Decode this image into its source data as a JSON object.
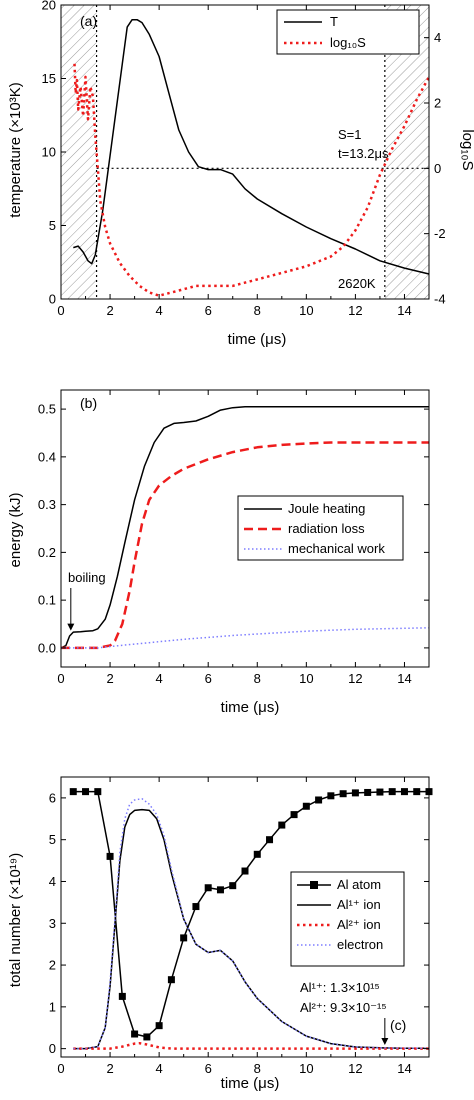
{
  "chart_data": [
    {
      "panel_label": "(a)",
      "type": "line",
      "xlabel": "time (μs)",
      "ylabel": "temperature (×10³K)",
      "ylabel_right": "log₁₀S",
      "xlim": [
        0,
        15
      ],
      "ylim": [
        0,
        20
      ],
      "ylim_right": [
        -4,
        5
      ],
      "xticks": [
        "0",
        "2",
        "4",
        "6",
        "8",
        "10",
        "12",
        "14"
      ],
      "yticks": [
        "0",
        "5",
        "10",
        "15",
        "20"
      ],
      "yticks_right": [
        "-4",
        "-2",
        "0",
        "2",
        "4"
      ],
      "legend": {
        "position": "top-right"
      },
      "series": [
        {
          "name": "T",
          "axis": "left",
          "color": "#000000",
          "style": "solid",
          "x": [
            0.5,
            0.7,
            0.9,
            1.1,
            1.25,
            1.4,
            1.55,
            1.7,
            1.9,
            2.1,
            2.3,
            2.5,
            2.7,
            2.9,
            3.1,
            3.3,
            3.6,
            4.0,
            4.4,
            4.8,
            5.2,
            5.6,
            6.0,
            6.5,
            7.0,
            7.5,
            8.0,
            9.0,
            10.0,
            11.0,
            12.0,
            13.0,
            14.0,
            15.0
          ],
          "y": [
            3.5,
            3.6,
            3.2,
            2.6,
            2.4,
            3.0,
            4.5,
            6.0,
            8.5,
            11.0,
            13.5,
            16.0,
            18.5,
            19.0,
            19.0,
            18.8,
            18.0,
            16.5,
            14.0,
            11.5,
            10.0,
            9.0,
            8.8,
            8.8,
            8.5,
            7.5,
            6.8,
            5.8,
            4.9,
            4.1,
            3.4,
            2.6,
            2.1,
            1.7
          ]
        },
        {
          "name": "log₁₀S",
          "axis": "right",
          "color": "#ee1c1c",
          "style": "dotted",
          "x": [
            0.55,
            0.6,
            0.65,
            0.7,
            0.8,
            0.9,
            1.0,
            1.1,
            1.2,
            1.3,
            1.4,
            1.5,
            1.6,
            1.8,
            2.0,
            2.4,
            2.8,
            3.2,
            3.6,
            4.0,
            4.5,
            5.0,
            5.5,
            6.0,
            6.5,
            7.0,
            8.0,
            9.0,
            10.0,
            11.0,
            11.5,
            12.0,
            12.5,
            13.0,
            13.5,
            14.0,
            14.5,
            15.0
          ],
          "y": [
            3.2,
            2.3,
            2.7,
            1.8,
            2.5,
            1.6,
            2.8,
            1.5,
            2.5,
            2.2,
            1.0,
            0.0,
            -1.0,
            -1.8,
            -2.3,
            -2.9,
            -3.3,
            -3.6,
            -3.8,
            -3.9,
            -3.8,
            -3.7,
            -3.6,
            -3.6,
            -3.6,
            -3.6,
            -3.4,
            -3.2,
            -3.0,
            -2.7,
            -2.4,
            -1.9,
            -1.2,
            -0.2,
            0.6,
            1.3,
            2.1,
            2.8
          ]
        }
      ],
      "reference_lines": {
        "x": [
          1.45,
          13.2
        ],
        "y_right": 0
      },
      "shaded_regions": [
        [
          0,
          1.45
        ],
        [
          13.2,
          15
        ]
      ],
      "annotations": {
        "s_line1": "S=1",
        "s_line2": "t=13.2μs",
        "temp": "2620K"
      }
    },
    {
      "panel_label": "(b)",
      "type": "line",
      "xlabel": "time (μs)",
      "ylabel": "energy (kJ)",
      "xlim": [
        0,
        15
      ],
      "ylim": [
        -0.04,
        0.54
      ],
      "xticks": [
        "0",
        "2",
        "4",
        "6",
        "8",
        "10",
        "12",
        "14"
      ],
      "yticks": [
        "0.0",
        "0.1",
        "0.2",
        "0.3",
        "0.4",
        "0.5"
      ],
      "legend": {
        "position": "center-right"
      },
      "series": [
        {
          "name": "Joule heating",
          "color": "#000000",
          "style": "solid",
          "x": [
            0,
            0.2,
            0.35,
            0.5,
            0.8,
            1.0,
            1.3,
            1.5,
            1.8,
            2.0,
            2.3,
            2.6,
            3.0,
            3.4,
            3.8,
            4.2,
            4.6,
            5.0,
            5.5,
            6.0,
            6.5,
            7.0,
            7.5,
            8.0,
            9.0,
            10.0,
            11.0,
            12.0,
            13.0,
            14.0,
            15.0
          ],
          "y": [
            0.0,
            0.005,
            0.025,
            0.033,
            0.034,
            0.035,
            0.036,
            0.04,
            0.06,
            0.09,
            0.15,
            0.22,
            0.31,
            0.38,
            0.43,
            0.46,
            0.47,
            0.472,
            0.475,
            0.485,
            0.498,
            0.503,
            0.505,
            0.505,
            0.505,
            0.505,
            0.505,
            0.505,
            0.505,
            0.505,
            0.505
          ]
        },
        {
          "name": "radiation loss",
          "color": "#ee1c1c",
          "style": "dashed",
          "x": [
            0,
            1.5,
            2.0,
            2.2,
            2.5,
            2.8,
            3.0,
            3.3,
            3.6,
            4.0,
            4.5,
            5.0,
            6.0,
            7.0,
            8.0,
            9.0,
            10.0,
            11.0,
            12.0,
            13.0,
            14.0,
            15.0
          ],
          "y": [
            0.0,
            0.0,
            0.005,
            0.015,
            0.05,
            0.12,
            0.18,
            0.26,
            0.31,
            0.34,
            0.36,
            0.375,
            0.395,
            0.41,
            0.42,
            0.425,
            0.428,
            0.43,
            0.43,
            0.43,
            0.43,
            0.43
          ]
        },
        {
          "name": "mechanical work",
          "color": "#7d7dff",
          "style": "dotted",
          "x": [
            0,
            1.5,
            2.0,
            3.0,
            4.0,
            5.0,
            6.0,
            7.0,
            8.0,
            9.0,
            10.0,
            11.0,
            12.0,
            13.0,
            14.0,
            15.0
          ],
          "y": [
            0.0,
            0.0,
            0.003,
            0.008,
            0.013,
            0.018,
            0.022,
            0.026,
            0.029,
            0.032,
            0.035,
            0.037,
            0.039,
            0.04,
            0.041,
            0.042
          ]
        }
      ],
      "annotations": {
        "boiling": "boiling",
        "boiling_at": {
          "x": 0.4,
          "y": 0.034
        }
      }
    },
    {
      "panel_label": "(c)",
      "type": "line",
      "xlabel": "time (μs)",
      "ylabel": "total number (×10¹⁹)",
      "xlim": [
        0,
        15
      ],
      "ylim": [
        -0.2,
        6.5
      ],
      "xticks": [
        "0",
        "2",
        "4",
        "6",
        "8",
        "10",
        "12",
        "14"
      ],
      "yticks": [
        "0",
        "1",
        "2",
        "3",
        "4",
        "5",
        "6"
      ],
      "legend": {
        "position": "center-right"
      },
      "series": [
        {
          "name": "Al atom",
          "color": "#000000",
          "style": "solid-square",
          "x": [
            0.5,
            1.0,
            1.5,
            2.0,
            2.5,
            3.0,
            3.5,
            4.0,
            4.5,
            5.0,
            5.5,
            6.0,
            6.5,
            7.0,
            7.5,
            8.0,
            8.5,
            9.0,
            9.5,
            10.0,
            10.5,
            11.0,
            11.5,
            12.0,
            12.5,
            13.0,
            13.5,
            14.0,
            14.5,
            15.0
          ],
          "y": [
            6.15,
            6.15,
            6.15,
            4.6,
            1.25,
            0.35,
            0.28,
            0.55,
            1.65,
            2.65,
            3.4,
            3.85,
            3.8,
            3.9,
            4.25,
            4.65,
            5.0,
            5.35,
            5.6,
            5.8,
            5.95,
            6.05,
            6.1,
            6.12,
            6.13,
            6.14,
            6.15,
            6.15,
            6.15,
            6.15
          ]
        },
        {
          "name": "Al¹⁺ ion",
          "color": "#000000",
          "style": "solid",
          "x": [
            0.5,
            1.0,
            1.5,
            1.8,
            2.0,
            2.2,
            2.4,
            2.6,
            2.8,
            3.0,
            3.3,
            3.6,
            3.9,
            4.2,
            4.5,
            5.0,
            5.5,
            6.0,
            6.5,
            7.0,
            7.5,
            8.0,
            9.0,
            10.0,
            11.0,
            12.0,
            13.0,
            14.0,
            15.0
          ],
          "y": [
            0.0,
            0.0,
            0.05,
            0.5,
            1.5,
            3.0,
            4.5,
            5.3,
            5.6,
            5.7,
            5.72,
            5.7,
            5.5,
            5.0,
            4.2,
            3.1,
            2.5,
            2.3,
            2.35,
            2.1,
            1.6,
            1.2,
            0.65,
            0.3,
            0.12,
            0.04,
            0.02,
            0.01,
            0.01
          ]
        },
        {
          "name": "Al²⁺ ion",
          "color": "#ee1c1c",
          "style": "dotted",
          "x": [
            0.5,
            2.0,
            2.5,
            3.0,
            3.2,
            3.5,
            4.0,
            4.5,
            5.0,
            15.0
          ],
          "y": [
            0.0,
            0.0,
            0.05,
            0.12,
            0.13,
            0.1,
            0.03,
            0.0,
            0.0,
            0.0
          ]
        },
        {
          "name": "electron",
          "color": "#7d7dff",
          "style": "dotted",
          "x": [
            0.5,
            1.0,
            1.5,
            1.8,
            2.0,
            2.2,
            2.4,
            2.6,
            2.8,
            3.0,
            3.3,
            3.6,
            3.9,
            4.2,
            4.5,
            5.0,
            5.5,
            6.0,
            6.5,
            7.0,
            7.5,
            8.0,
            9.0,
            10.0,
            11.0,
            12.0,
            13.0,
            14.0,
            15.0
          ],
          "y": [
            0.0,
            0.0,
            0.05,
            0.5,
            1.6,
            3.1,
            4.7,
            5.5,
            5.85,
            5.95,
            5.98,
            5.85,
            5.6,
            5.1,
            4.3,
            3.1,
            2.5,
            2.3,
            2.35,
            2.1,
            1.6,
            1.2,
            0.65,
            0.3,
            0.12,
            0.04,
            0.02,
            0.01,
            0.01
          ]
        }
      ],
      "annotations": {
        "al1": "Al¹⁺: 1.3×10¹⁵",
        "al2": "Al²⁺: 9.3×10⁻¹⁵",
        "arrow_x": 13.2
      }
    }
  ]
}
